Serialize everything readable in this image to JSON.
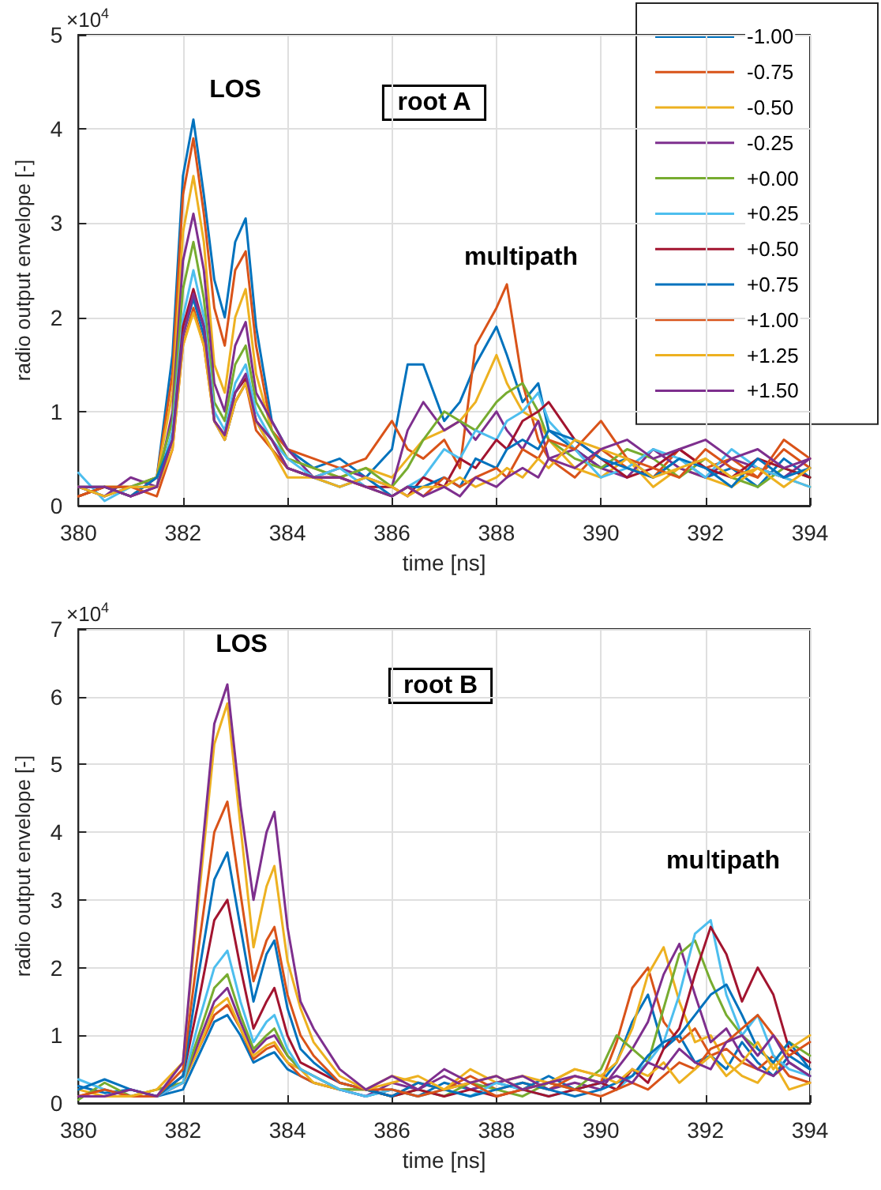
{
  "chart_data": [
    {
      "type": "line",
      "xlabel": "time [ns]",
      "ylabel": "radio output envelope [-]",
      "annotations": [
        "LOS",
        "multipath",
        "root A",
        "×10$^{4}$"
      ],
      "x": [
        380,
        380.5,
        381,
        381.5,
        381.8,
        382,
        382.2,
        382.4,
        382.6,
        382.8,
        383,
        383.2,
        383.4,
        383.7,
        384,
        384.5,
        385,
        385.5,
        386,
        386.3,
        386.6,
        387,
        387.3,
        387.6,
        388,
        388.2,
        388.5,
        388.8,
        389,
        389.5,
        390,
        390.5,
        391,
        391.5,
        392,
        392.5,
        393,
        393.5,
        394
      ],
      "xlim": [
        380,
        394
      ],
      "xticks": [
        380,
        382,
        384,
        386,
        388,
        390,
        392,
        394
      ],
      "ylim": [
        0,
        5
      ],
      "yticks": [
        0,
        1,
        2,
        3,
        4,
        5
      ],
      "grid": true,
      "legend": "top right",
      "line_style": "solid",
      "marker": "none",
      "series": [
        {
          "name": "-1.00",
          "color": "#0072bd",
          "values": [
            0.2,
            0.1,
            0.2,
            0.3,
            1.6,
            3.5,
            4.1,
            3.3,
            2.4,
            2.0,
            2.8,
            3.05,
            1.9,
            0.9,
            0.6,
            0.4,
            0.5,
            0.3,
            0.6,
            1.5,
            1.5,
            0.9,
            1.1,
            1.5,
            1.9,
            1.6,
            1.1,
            1.3,
            0.8,
            0.6,
            0.4,
            0.5,
            0.3,
            0.5,
            0.3,
            0.4,
            0.2,
            0.5,
            0.3
          ]
        },
        {
          "name": "-0.75",
          "color": "#d95319",
          "values": [
            0.2,
            0.2,
            0.1,
            0.3,
            1.4,
            3.3,
            3.9,
            3.1,
            2.1,
            1.7,
            2.5,
            2.7,
            1.7,
            0.8,
            0.6,
            0.5,
            0.4,
            0.5,
            0.9,
            0.6,
            0.5,
            0.7,
            0.4,
            1.7,
            2.1,
            2.35,
            1.3,
            0.7,
            0.5,
            0.3,
            0.6,
            0.4,
            0.3,
            0.6,
            0.4,
            0.5,
            0.3,
            0.6,
            0.4
          ]
        },
        {
          "name": "-0.50",
          "color": "#edb120",
          "values": [
            0.1,
            0.2,
            0.2,
            0.3,
            1.2,
            2.9,
            3.5,
            2.8,
            1.5,
            1.2,
            2.0,
            2.3,
            1.4,
            0.8,
            0.5,
            0.4,
            0.3,
            0.4,
            0.3,
            0.5,
            0.7,
            0.8,
            0.9,
            1.1,
            1.6,
            1.3,
            1.0,
            0.9,
            0.7,
            0.4,
            0.3,
            0.5,
            0.2,
            0.4,
            0.3,
            0.2,
            0.4,
            0.3,
            0.2
          ]
        },
        {
          "name": "-0.25",
          "color": "#7e2f8e",
          "values": [
            0.2,
            0.1,
            0.3,
            0.2,
            1.0,
            2.6,
            3.1,
            2.5,
            1.3,
            1.0,
            1.7,
            1.95,
            1.2,
            0.9,
            0.6,
            0.3,
            0.4,
            0.3,
            0.2,
            0.8,
            1.1,
            0.8,
            0.9,
            0.7,
            1.0,
            0.8,
            0.6,
            0.9,
            0.5,
            0.6,
            0.4,
            0.3,
            0.6,
            0.4,
            0.3,
            0.5,
            0.4,
            0.3,
            0.5
          ]
        },
        {
          "name": "+0.00",
          "color": "#77ac30",
          "values": [
            0.1,
            0.2,
            0.2,
            0.3,
            0.9,
            2.3,
            2.8,
            2.2,
            1.1,
            0.9,
            1.5,
            1.7,
            1.1,
            0.8,
            0.5,
            0.4,
            0.3,
            0.4,
            0.2,
            0.4,
            0.7,
            1.0,
            0.9,
            0.8,
            1.1,
            1.2,
            1.3,
            1.0,
            0.7,
            0.5,
            0.4,
            0.6,
            0.5,
            0.3,
            0.5,
            0.3,
            0.2,
            0.4,
            0.3
          ]
        },
        {
          "name": "+0.25",
          "color": "#4dbeee",
          "values": [
            0.35,
            0.05,
            0.2,
            0.2,
            0.8,
            2.0,
            2.5,
            2.0,
            1.0,
            0.8,
            1.3,
            1.5,
            1.0,
            0.7,
            0.5,
            0.3,
            0.4,
            0.2,
            0.1,
            0.2,
            0.3,
            0.6,
            0.5,
            0.8,
            0.7,
            0.9,
            1.0,
            1.2,
            0.9,
            0.6,
            0.3,
            0.4,
            0.6,
            0.5,
            0.3,
            0.6,
            0.4,
            0.3,
            0.2
          ]
        },
        {
          "name": "+0.50",
          "color": "#a2142f",
          "values": [
            0.1,
            0.2,
            0.1,
            0.2,
            0.7,
            1.9,
            2.3,
            1.9,
            0.9,
            0.75,
            1.2,
            1.35,
            0.9,
            0.7,
            0.4,
            0.3,
            0.3,
            0.2,
            0.2,
            0.1,
            0.3,
            0.2,
            0.5,
            0.4,
            0.7,
            0.6,
            0.9,
            1.0,
            1.1,
            0.7,
            0.5,
            0.3,
            0.4,
            0.6,
            0.4,
            0.3,
            0.5,
            0.4,
            0.3
          ]
        },
        {
          "name": "+0.75",
          "color": "#0072bd",
          "values": [
            0.2,
            0.2,
            0.1,
            0.3,
            0.7,
            1.8,
            2.2,
            1.8,
            0.9,
            0.7,
            1.1,
            1.3,
            0.9,
            0.6,
            0.4,
            0.3,
            0.2,
            0.3,
            0.1,
            0.2,
            0.2,
            0.3,
            0.2,
            0.5,
            0.4,
            0.6,
            0.7,
            0.6,
            0.8,
            0.7,
            0.5,
            0.4,
            0.3,
            0.5,
            0.4,
            0.2,
            0.5,
            0.3,
            0.4
          ]
        },
        {
          "name": "+1.00",
          "color": "#d95319",
          "values": [
            0.1,
            0.2,
            0.2,
            0.1,
            0.6,
            1.7,
            2.1,
            1.7,
            0.9,
            0.7,
            1.1,
            1.3,
            0.8,
            0.6,
            0.4,
            0.3,
            0.3,
            0.2,
            0.1,
            0.2,
            0.1,
            0.3,
            0.2,
            0.3,
            0.4,
            0.3,
            0.6,
            0.5,
            0.7,
            0.6,
            0.9,
            0.5,
            0.4,
            0.3,
            0.6,
            0.4,
            0.3,
            0.7,
            0.5
          ]
        },
        {
          "name": "+1.25",
          "color": "#edb120",
          "values": [
            0.2,
            0.1,
            0.2,
            0.2,
            0.6,
            1.7,
            2.05,
            1.7,
            0.9,
            0.7,
            1.1,
            1.3,
            0.9,
            0.6,
            0.3,
            0.3,
            0.2,
            0.3,
            0.2,
            0.1,
            0.2,
            0.2,
            0.3,
            0.2,
            0.3,
            0.4,
            0.3,
            0.5,
            0.4,
            0.7,
            0.6,
            0.5,
            0.3,
            0.4,
            0.5,
            0.3,
            0.4,
            0.2,
            0.4
          ]
        },
        {
          "name": "+1.50",
          "color": "#7e2f8e",
          "values": [
            0.2,
            0.2,
            0.1,
            0.2,
            0.7,
            1.8,
            2.25,
            1.9,
            0.9,
            0.75,
            1.2,
            1.4,
            0.9,
            0.7,
            0.4,
            0.3,
            0.3,
            0.2,
            0.1,
            0.2,
            0.1,
            0.2,
            0.1,
            0.3,
            0.2,
            0.3,
            0.4,
            0.3,
            0.5,
            0.4,
            0.6,
            0.7,
            0.5,
            0.6,
            0.7,
            0.5,
            0.6,
            0.4,
            0.5
          ]
        }
      ]
    },
    {
      "type": "line",
      "xlabel": "time [ns]",
      "ylabel": "radio output envelope [-]",
      "annotations": [
        "LOS",
        "multipath",
        "root B",
        "×10$^{4}$"
      ],
      "x": [
        380,
        380.5,
        381,
        381.5,
        382,
        382.3,
        382.6,
        382.85,
        383.1,
        383.35,
        383.6,
        383.75,
        384,
        384.25,
        384.5,
        385,
        385.5,
        386,
        386.5,
        387,
        387.5,
        388,
        388.5,
        389,
        389.5,
        390,
        390.3,
        390.6,
        390.9,
        391.2,
        391.5,
        391.8,
        392.1,
        392.4,
        392.7,
        393,
        393.3,
        393.6,
        394
      ],
      "xlim": [
        380,
        394
      ],
      "xticks": [
        380,
        382,
        384,
        386,
        388,
        390,
        392,
        394
      ],
      "ylim": [
        0,
        7
      ],
      "yticks": [
        0,
        1,
        2,
        3,
        4,
        5,
        6,
        7
      ],
      "grid": true,
      "line_style": "solid",
      "marker": "none",
      "series": [
        {
          "color": "#0072bd",
          "values": [
            0.25,
            0.15,
            0.2,
            0.1,
            0.2,
            0.7,
            1.2,
            1.3,
            1.0,
            0.6,
            0.7,
            0.75,
            0.5,
            0.4,
            0.3,
            0.2,
            0.1,
            0.2,
            0.1,
            0.3,
            0.2,
            0.3,
            0.2,
            0.4,
            0.2,
            0.3,
            0.6,
            1.2,
            1.6,
            0.8,
            1.0,
            0.6,
            0.7,
            0.5,
            0.9,
            0.6,
            0.4,
            0.7,
            0.5
          ]
        },
        {
          "color": "#d95319",
          "values": [
            0.1,
            0.2,
            0.1,
            0.1,
            0.3,
            0.8,
            1.3,
            1.45,
            1.1,
            0.65,
            0.8,
            0.85,
            0.6,
            0.4,
            0.3,
            0.2,
            0.2,
            0.1,
            0.3,
            0.2,
            0.4,
            0.2,
            0.3,
            0.2,
            0.4,
            0.3,
            0.9,
            1.7,
            2.0,
            1.2,
            0.9,
            1.1,
            0.7,
            0.8,
            0.6,
            0.5,
            0.7,
            0.4,
            0.3
          ]
        },
        {
          "color": "#edb120",
          "values": [
            0.2,
            0.1,
            0.1,
            0.2,
            0.3,
            0.8,
            1.4,
            1.55,
            1.1,
            0.7,
            0.85,
            0.9,
            0.6,
            0.5,
            0.3,
            0.2,
            0.2,
            0.4,
            0.3,
            0.2,
            0.5,
            0.3,
            0.4,
            0.3,
            0.5,
            0.4,
            0.6,
            1.1,
            1.9,
            2.3,
            1.5,
            0.9,
            1.0,
            0.6,
            0.4,
            0.3,
            0.6,
            0.2,
            0.3
          ]
        },
        {
          "color": "#7e2f8e",
          "values": [
            0.1,
            0.1,
            0.2,
            0.1,
            0.3,
            0.9,
            1.5,
            1.7,
            1.2,
            0.75,
            0.95,
            1.0,
            0.7,
            0.5,
            0.4,
            0.2,
            0.1,
            0.3,
            0.2,
            0.4,
            0.2,
            0.3,
            0.4,
            0.2,
            0.3,
            0.2,
            0.5,
            0.8,
            1.2,
            1.9,
            2.35,
            1.6,
            0.9,
            1.1,
            0.7,
            0.5,
            0.4,
            0.6,
            0.4
          ]
        },
        {
          "color": "#77ac30",
          "values": [
            0.05,
            0.3,
            0.1,
            0.2,
            0.3,
            1.0,
            1.7,
            1.9,
            1.3,
            0.8,
            1.0,
            1.1,
            0.7,
            0.5,
            0.4,
            0.2,
            0.2,
            0.1,
            0.2,
            0.1,
            0.3,
            0.2,
            0.1,
            0.3,
            0.2,
            0.5,
            1.0,
            0.8,
            0.6,
            1.4,
            2.2,
            2.4,
            1.8,
            1.3,
            1.0,
            0.8,
            0.6,
            0.9,
            0.7
          ]
        },
        {
          "color": "#4dbeee",
          "values": [
            0.35,
            0.2,
            0.1,
            0.1,
            0.3,
            1.2,
            2.0,
            2.25,
            1.5,
            0.9,
            1.2,
            1.3,
            0.8,
            0.5,
            0.4,
            0.2,
            0.1,
            0.2,
            0.1,
            0.2,
            0.1,
            0.3,
            0.2,
            0.1,
            0.2,
            0.3,
            0.2,
            0.4,
            0.6,
            0.9,
            1.6,
            2.5,
            2.7,
            1.6,
            1.0,
            1.3,
            0.7,
            0.5,
            0.4
          ]
        },
        {
          "color": "#a2142f",
          "values": [
            0.1,
            0.1,
            0.1,
            0.1,
            0.4,
            1.5,
            2.7,
            3.0,
            2.0,
            1.1,
            1.5,
            1.7,
            1.0,
            0.6,
            0.5,
            0.3,
            0.2,
            0.1,
            0.2,
            0.1,
            0.2,
            0.1,
            0.2,
            0.1,
            0.2,
            0.3,
            0.2,
            0.5,
            0.3,
            0.8,
            1.1,
            1.9,
            2.6,
            2.2,
            1.5,
            2.0,
            1.6,
            0.8,
            0.6
          ]
        },
        {
          "color": "#0072bd",
          "values": [
            0.2,
            0.35,
            0.2,
            0.1,
            0.4,
            1.9,
            3.3,
            3.7,
            2.6,
            1.5,
            2.2,
            2.4,
            1.4,
            0.8,
            0.6,
            0.3,
            0.2,
            0.1,
            0.3,
            0.2,
            0.1,
            0.2,
            0.3,
            0.2,
            0.1,
            0.2,
            0.3,
            0.4,
            0.7,
            0.9,
            1.0,
            1.3,
            1.6,
            1.75,
            1.3,
            0.8,
            0.6,
            0.9,
            0.5
          ]
        },
        {
          "color": "#d95319",
          "values": [
            0.1,
            0.2,
            0.1,
            0.1,
            0.5,
            2.3,
            4.0,
            4.45,
            3.1,
            1.8,
            2.4,
            2.6,
            1.6,
            1.0,
            0.7,
            0.3,
            0.2,
            0.2,
            0.1,
            0.2,
            0.3,
            0.1,
            0.2,
            0.3,
            0.2,
            0.1,
            0.2,
            0.3,
            0.2,
            0.4,
            0.6,
            0.5,
            0.8,
            0.9,
            1.1,
            1.3,
            1.0,
            0.7,
            0.9
          ]
        },
        {
          "color": "#edb120",
          "values": [
            0.1,
            0.1,
            0.1,
            0.2,
            0.6,
            3.0,
            5.3,
            5.9,
            4.1,
            2.3,
            3.2,
            3.5,
            2.1,
            1.4,
            0.9,
            0.4,
            0.2,
            0.3,
            0.4,
            0.2,
            0.3,
            0.4,
            0.2,
            0.3,
            0.5,
            0.4,
            0.3,
            0.5,
            0.4,
            0.6,
            0.3,
            0.5,
            0.7,
            0.4,
            0.6,
            0.9,
            0.5,
            0.8,
            1.0
          ]
        },
        {
          "color": "#7e2f8e",
          "values": [
            0.1,
            0.1,
            0.2,
            0.1,
            0.6,
            3.2,
            5.6,
            6.18,
            4.4,
            3.0,
            4.0,
            4.3,
            2.6,
            1.5,
            1.1,
            0.5,
            0.2,
            0.4,
            0.2,
            0.5,
            0.3,
            0.4,
            0.2,
            0.3,
            0.4,
            0.3,
            0.4,
            0.3,
            0.6,
            0.5,
            0.8,
            0.6,
            0.5,
            0.9,
            1.0,
            0.7,
            1.0,
            0.6,
            0.4
          ]
        }
      ]
    }
  ]
}
